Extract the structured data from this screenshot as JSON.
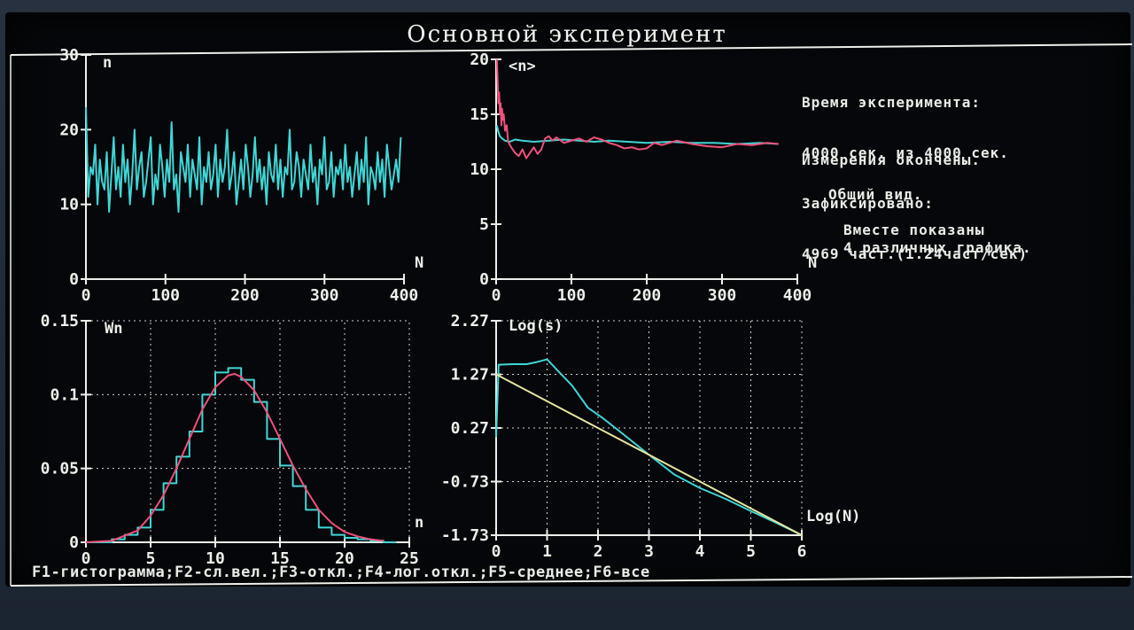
{
  "title": "Основной эксперимент",
  "info": {
    "line1": "Время эксперимента:",
    "line2": "4000 сек. из 4000 сек.",
    "line3": "Зафиксировано:",
    "line4": "4969 част.(1.24част/сек)",
    "status": "Измерения окончены.",
    "view": "Общий вид.",
    "note1": "Вместе показаны",
    "note2": "4 различных графика."
  },
  "footer": "F1-гистограмма;F2-сл.вел.;F3-откл.;F4-лог.откл.;F5-среднее;F6-все",
  "colors": {
    "cyan": "#3fd6d6",
    "red": "#f0507a",
    "yellow": "#e6e4a0",
    "axis": "#ecefea",
    "grid": "#cfd3cc"
  },
  "chart_data": [
    {
      "id": "counts",
      "type": "line",
      "title": "",
      "xlabel": "N",
      "ylabel": "n",
      "xlim": [
        0,
        400
      ],
      "ylim": [
        0,
        30
      ],
      "xticks": [
        "0",
        "100",
        "200",
        "300",
        "400"
      ],
      "yticks": [
        "0",
        "10",
        "20",
        "30"
      ],
      "grid": false,
      "series": [
        {
          "name": "n",
          "color": "cyan",
          "values": [
            23,
            11,
            15,
            14,
            18,
            10,
            16,
            13,
            12,
            17,
            9,
            14,
            19,
            12,
            15,
            11,
            18,
            13,
            16,
            10,
            14,
            20,
            12,
            15,
            17,
            11,
            13,
            16,
            19,
            10,
            14,
            12,
            18,
            15,
            11,
            16,
            13,
            21,
            12,
            14,
            9,
            17,
            15,
            13,
            18,
            11,
            16,
            14,
            12,
            19,
            10,
            15,
            13,
            17,
            12,
            14,
            18,
            11,
            16,
            13,
            15,
            20,
            12,
            14,
            17,
            10,
            13,
            16,
            12,
            18,
            15,
            11,
            14,
            19,
            13,
            16,
            12,
            15,
            10,
            17,
            14,
            13,
            18,
            12,
            16,
            11,
            15,
            14,
            20,
            12,
            13,
            17,
            15,
            11,
            16,
            14,
            12,
            18,
            13,
            15,
            10,
            16,
            14,
            19,
            12,
            13,
            17,
            11,
            15,
            14,
            16,
            12,
            18,
            13,
            15,
            11,
            14,
            17,
            12,
            16,
            13,
            19,
            10,
            15,
            14,
            12,
            17,
            13,
            16,
            11,
            18,
            15,
            12,
            14,
            16,
            13,
            19
          ]
        }
      ]
    },
    {
      "id": "mean",
      "type": "line",
      "title": "",
      "xlabel": "N",
      "ylabel": "<n>",
      "xlim": [
        0,
        400
      ],
      "ylim": [
        0,
        20
      ],
      "xticks": [
        "0",
        "100",
        "200",
        "300",
        "400"
      ],
      "yticks": [
        "0",
        "5",
        "10",
        "15",
        "20"
      ],
      "grid": false,
      "series": [
        {
          "name": "cyan",
          "color": "cyan",
          "x": [
            1,
            3,
            5,
            8,
            12,
            18,
            25,
            35,
            50,
            70,
            90,
            110,
            130,
            150,
            175,
            200,
            230,
            260,
            290,
            320,
            350,
            375
          ],
          "values": [
            14,
            13.4,
            13.0,
            12.8,
            12.6,
            12.5,
            12.7,
            12.6,
            12.5,
            12.6,
            12.7,
            12.6,
            12.5,
            12.6,
            12.5,
            12.4,
            12.5,
            12.4,
            12.4,
            12.3,
            12.4,
            12.3
          ]
        },
        {
          "name": "red",
          "color": "red",
          "x": [
            1,
            2,
            3,
            4,
            5,
            6,
            7,
            8,
            9,
            10,
            12,
            14,
            16,
            20,
            25,
            30,
            35,
            40,
            45,
            50,
            55,
            60,
            65,
            70,
            75,
            80,
            90,
            100,
            110,
            120,
            130,
            140,
            150,
            160,
            170,
            180,
            190,
            200,
            210,
            220,
            240,
            260,
            280,
            300,
            320,
            340,
            360,
            375
          ],
          "values": [
            20,
            18,
            16,
            17,
            15,
            16,
            14,
            15.5,
            14.5,
            15,
            13.5,
            14,
            12.5,
            12,
            11.5,
            11.2,
            11.8,
            11.0,
            11.5,
            12.0,
            11.4,
            11.8,
            12.8,
            13.0,
            12.6,
            12.9,
            12.4,
            12.6,
            12.8,
            12.5,
            12.9,
            12.7,
            12.4,
            12.2,
            11.9,
            12.0,
            11.8,
            11.9,
            12.4,
            12.2,
            12.6,
            12.3,
            12.1,
            12.0,
            12.3,
            12.2,
            12.4,
            12.3
          ]
        }
      ]
    },
    {
      "id": "histogram",
      "type": "line",
      "title": "",
      "xlabel": "n",
      "ylabel": "Wn",
      "xlim": [
        0,
        25
      ],
      "ylim": [
        0,
        0.15
      ],
      "xticks": [
        "0",
        "5",
        "10",
        "15",
        "20",
        "25"
      ],
      "yticks": [
        "0",
        "0.05",
        "0.1",
        "0.15"
      ],
      "grid": true,
      "series": [
        {
          "name": "histogram",
          "color": "cyan",
          "step": true,
          "x": [
            0,
            1,
            2,
            3,
            4,
            5,
            6,
            7,
            8,
            9,
            10,
            11,
            12,
            13,
            14,
            15,
            16,
            17,
            18,
            19,
            20,
            21,
            22,
            23
          ],
          "values": [
            0,
            0,
            0.002,
            0.005,
            0.01,
            0.022,
            0.04,
            0.058,
            0.075,
            0.1,
            0.115,
            0.118,
            0.11,
            0.095,
            0.07,
            0.052,
            0.038,
            0.022,
            0.01,
            0.005,
            0.003,
            0.002,
            0.001,
            0
          ]
        },
        {
          "name": "fit",
          "color": "red",
          "x": [
            0,
            2,
            4,
            5,
            6,
            7,
            8,
            9,
            10,
            11,
            11.5,
            12,
            13,
            14,
            15,
            16,
            17,
            18,
            19,
            20,
            21,
            22,
            23
          ],
          "values": [
            0,
            0.001,
            0.008,
            0.018,
            0.032,
            0.05,
            0.07,
            0.09,
            0.105,
            0.113,
            0.114,
            0.112,
            0.103,
            0.088,
            0.07,
            0.052,
            0.036,
            0.022,
            0.013,
            0.007,
            0.004,
            0.002,
            0.001
          ]
        }
      ]
    },
    {
      "id": "logdev",
      "type": "line",
      "title": "",
      "xlabel": "Log(N)",
      "ylabel": "Log(s)",
      "xlim": [
        0,
        6
      ],
      "ylim": [
        -1.73,
        2.27
      ],
      "xticks": [
        "0",
        "1",
        "2",
        "3",
        "4",
        "5",
        "6"
      ],
      "yticks": [
        "-1.73",
        "-0.73",
        "0.27",
        "1.27",
        "2.27"
      ],
      "grid": true,
      "series": [
        {
          "name": "measured",
          "color": "cyan",
          "x": [
            0,
            0.05,
            0.3,
            0.6,
            0.8,
            1.0,
            1.2,
            1.5,
            1.8,
            2.1,
            2.5,
            3.0,
            3.5,
            4.0,
            4.5,
            5.0,
            5.5,
            6.0
          ],
          "values": [
            0.1,
            1.45,
            1.46,
            1.46,
            1.5,
            1.55,
            1.35,
            1.05,
            0.65,
            0.45,
            0.15,
            -0.23,
            -0.6,
            -0.85,
            -1.05,
            -1.28,
            -1.5,
            -1.73
          ]
        },
        {
          "name": "theory",
          "color": "yellow",
          "x": [
            0,
            6
          ],
          "values": [
            1.27,
            -1.73
          ]
        }
      ]
    }
  ]
}
